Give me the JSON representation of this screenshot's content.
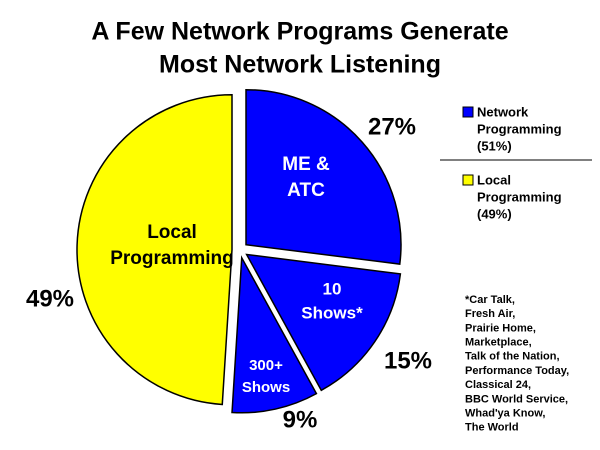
{
  "chart_data": {
    "type": "pie",
    "title": [
      "A Few Network Programs Generate",
      "Most Network Listening"
    ],
    "categories": [
      [
        "ME &",
        "ATC"
      ],
      [
        "10",
        "Shows*"
      ],
      [
        "300+",
        "Shows"
      ],
      [
        "Local",
        "Programming"
      ]
    ],
    "values": [
      27,
      15,
      9,
      49
    ],
    "value_labels": [
      "27%",
      "15%",
      "9%",
      "49%"
    ],
    "colors": [
      "#0000ff",
      "#0000ff",
      "#0000ff",
      "#ffff00"
    ],
    "category_label_colors": [
      "#ffffff",
      "#ffffff",
      "#ffffff",
      "#000000"
    ],
    "legend": [
      {
        "label": [
          "Network",
          "Programming",
          "(51%)"
        ],
        "color": "#0000ff"
      },
      {
        "label": [
          "Local",
          "Programming",
          "(49%)"
        ],
        "color": "#ffff00"
      }
    ],
    "footnote": [
      "*Car Talk,",
      "Fresh Air,",
      "Prairie Home,",
      "Marketplace,",
      "Talk of the Nation,",
      "Performance Today,",
      "Classical 24,",
      "BBC World Service,",
      "Whad'ya Know,",
      "The World"
    ]
  }
}
